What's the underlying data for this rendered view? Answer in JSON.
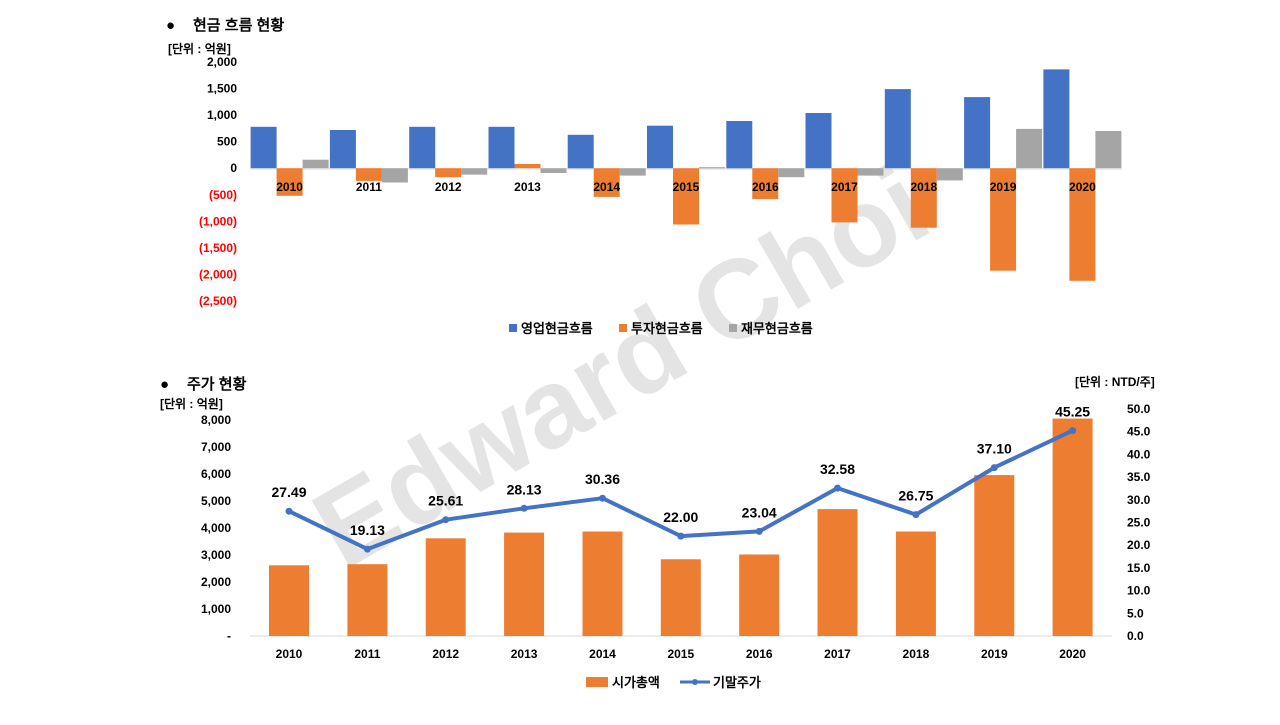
{
  "watermark": "Edward Choi",
  "colors": {
    "operating": "#4472C4",
    "investing": "#ED7D31",
    "financing": "#A5A5A5",
    "market_cap": "#ED7D31",
    "price_line": "#4472C4",
    "negative_tick": "#FF0000"
  },
  "chart_data": [
    {
      "type": "bar",
      "title": "현금 흐름 현황",
      "title_bullet": "●",
      "unit_label": "[단위 : 억원]",
      "categories": [
        "2010",
        "2011",
        "2012",
        "2013",
        "2014",
        "2015",
        "2016",
        "2017",
        "2018",
        "2019",
        "2020"
      ],
      "series": [
        {
          "name": "영업현금흐름",
          "values": [
            780,
            720,
            780,
            780,
            630,
            800,
            890,
            1040,
            1490,
            1340,
            1860
          ]
        },
        {
          "name": "투자현금흐름",
          "values": [
            -520,
            -240,
            -170,
            80,
            -540,
            -1060,
            -580,
            -1020,
            -1120,
            -1930,
            -2120
          ]
        },
        {
          "name": "재무현금흐름",
          "values": [
            160,
            -270,
            -120,
            -90,
            -140,
            20,
            -170,
            -140,
            -230,
            740,
            700
          ]
        }
      ],
      "ylim": [
        -2500,
        2000
      ],
      "yticks": [
        {
          "value": 2000,
          "label": "2,000"
        },
        {
          "value": 1500,
          "label": "1,500"
        },
        {
          "value": 1000,
          "label": "1,000"
        },
        {
          "value": 500,
          "label": "500"
        },
        {
          "value": 0,
          "label": "0"
        },
        {
          "value": -500,
          "label": "(500)"
        },
        {
          "value": -1000,
          "label": "(1,000)"
        },
        {
          "value": -1500,
          "label": "(1,500)"
        },
        {
          "value": -2000,
          "label": "(2,000)"
        },
        {
          "value": -2500,
          "label": "(2,500)"
        }
      ],
      "legend": "bottom",
      "grid": false
    },
    {
      "type": "bar+line",
      "title": "주가 현황",
      "title_bullet": "●",
      "unit_label_left": "[단위 : 억원]",
      "unit_label_right": "[단위 : NTD/주]",
      "categories": [
        "2010",
        "2011",
        "2012",
        "2013",
        "2014",
        "2015",
        "2016",
        "2017",
        "2018",
        "2019",
        "2020"
      ],
      "bar_series": {
        "name": "시가총액",
        "values": [
          2620,
          2660,
          3620,
          3830,
          3870,
          2840,
          3020,
          4700,
          3870,
          5960,
          8050
        ]
      },
      "line_series": {
        "name": "기말주가",
        "values": [
          27.49,
          19.13,
          25.61,
          28.13,
          30.36,
          22.0,
          23.04,
          32.58,
          26.75,
          37.1,
          45.25
        ],
        "labels": [
          "27.49",
          "19.13",
          "25.61",
          "28.13",
          "30.36",
          "22.00",
          "23.04",
          "32.58",
          "26.75",
          "37.10",
          "45.25"
        ]
      },
      "ylim_left": [
        0,
        8000
      ],
      "yticks_left": [
        "-",
        "1,000",
        "2,000",
        "3,000",
        "4,000",
        "5,000",
        "6,000",
        "7,000",
        "8,000"
      ],
      "ylim_right": [
        0,
        50
      ],
      "yticks_right": [
        "0.0",
        "5.0",
        "10.0",
        "15.0",
        "20.0",
        "25.0",
        "30.0",
        "35.0",
        "40.0",
        "45.0",
        "50.0"
      ],
      "legend": "bottom",
      "grid": false
    }
  ]
}
